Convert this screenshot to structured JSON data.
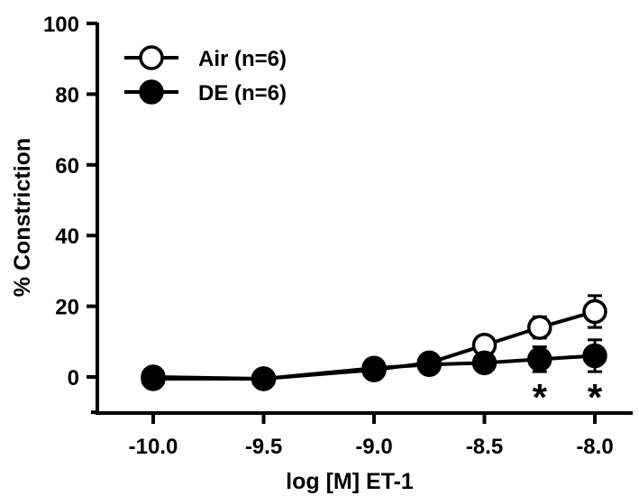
{
  "chart_data": {
    "type": "line",
    "title": "",
    "xlabel": "log [M] ET-1",
    "ylabel": "% Constriction",
    "xlim": [
      -10.2,
      -7.9
    ],
    "ylim": [
      -10,
      100
    ],
    "x_ticks": [
      -10.0,
      -9.5,
      -9.0,
      -8.5,
      -8.0
    ],
    "x_tick_labels": [
      "-10.0",
      "-9.5",
      "-9.0",
      "-8.5",
      "-8.0"
    ],
    "y_ticks": [
      0,
      20,
      40,
      60,
      80,
      100
    ],
    "y_tick_labels": [
      "0",
      "20",
      "40",
      "60",
      "80",
      "100"
    ],
    "grid": false,
    "legend_position": "top-left",
    "series": [
      {
        "name": "Air (n=6)",
        "marker": "open-circle",
        "color": "#000000",
        "x": [
          -10.0,
          -9.5,
          -9.0,
          -8.75,
          -8.5,
          -8.25,
          -8.0
        ],
        "y": [
          0,
          -0.5,
          2,
          4,
          9,
          14,
          18.5
        ],
        "error": [
          1,
          1,
          1.5,
          2,
          2,
          3,
          4.5
        ]
      },
      {
        "name": "DE (n=6)",
        "marker": "filled-circle",
        "color": "#000000",
        "x": [
          -10.0,
          -9.5,
          -9.0,
          -8.75,
          -8.5,
          -8.25,
          -8.0
        ],
        "y": [
          -0.5,
          -0.5,
          2.5,
          3.5,
          4,
          5,
          6
        ],
        "error": [
          1,
          1,
          1.5,
          2,
          2.5,
          3.5,
          4.5
        ]
      }
    ],
    "annotations": [
      {
        "text": "*",
        "x": -8.25
      },
      {
        "text": "*",
        "x": -8.0
      }
    ]
  }
}
